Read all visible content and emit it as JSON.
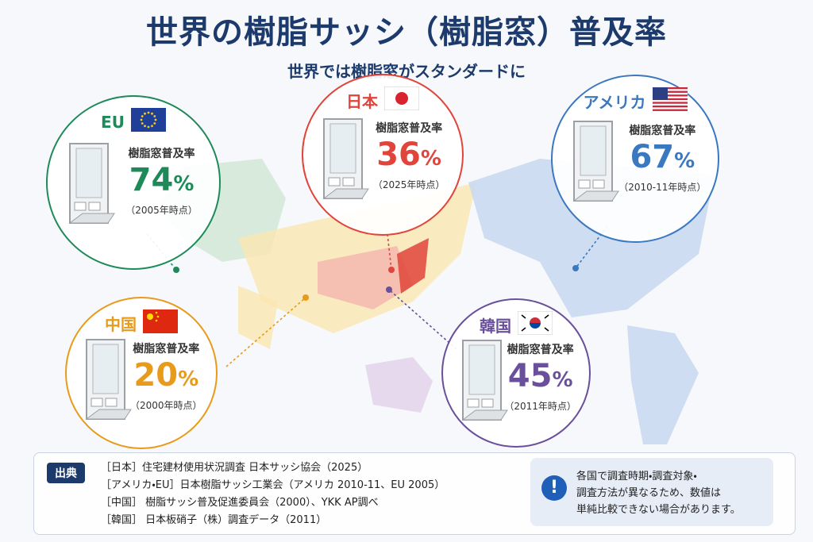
{
  "header": {
    "title": "世界の樹脂サッシ（樹脂窓）普及率",
    "subtitle": "世界では樹脂窓がスタンダードに"
  },
  "regions": [
    {
      "name": "EU",
      "label": "樹脂窓普及率",
      "value": "74",
      "unit": "%",
      "note": "（2005年時点）"
    },
    {
      "name": "日本",
      "label": "樹脂窓普及率",
      "value": "36",
      "unit": "%",
      "note": "（2025年時点）"
    },
    {
      "name": "アメリカ",
      "label": "樹脂窓普及率",
      "value": "67",
      "unit": "%",
      "note": "（2010-11年時点）"
    },
    {
      "name": "中国",
      "label": "樹脂窓普及率",
      "value": "20",
      "unit": "%",
      "note": "（2000年時点）"
    },
    {
      "name": "韓国",
      "label": "樹脂窓普及率",
      "value": "45",
      "unit": "%",
      "note": "（2011年時点）"
    }
  ],
  "sources": {
    "label": "出典",
    "lines": [
      "［日本］住宅建材使用状況調査 日本サッシ協会（2025）",
      "［アメリカ・EU］日本樹脂サッシ工業会（アメリカ 2010-11、EU 2005）",
      "［中国］ 樹脂サッシ普及促進委員会（2000）、YKK AP調べ",
      "［韓国］ 日本板硝子（株）調査データ（2011）"
    ]
  },
  "notice": {
    "icon": "!",
    "lines": [
      "各国で調査時期・調査対象・",
      "調査方法が異なるため、数値は",
      "単純比較できない場合があります。"
    ]
  }
}
